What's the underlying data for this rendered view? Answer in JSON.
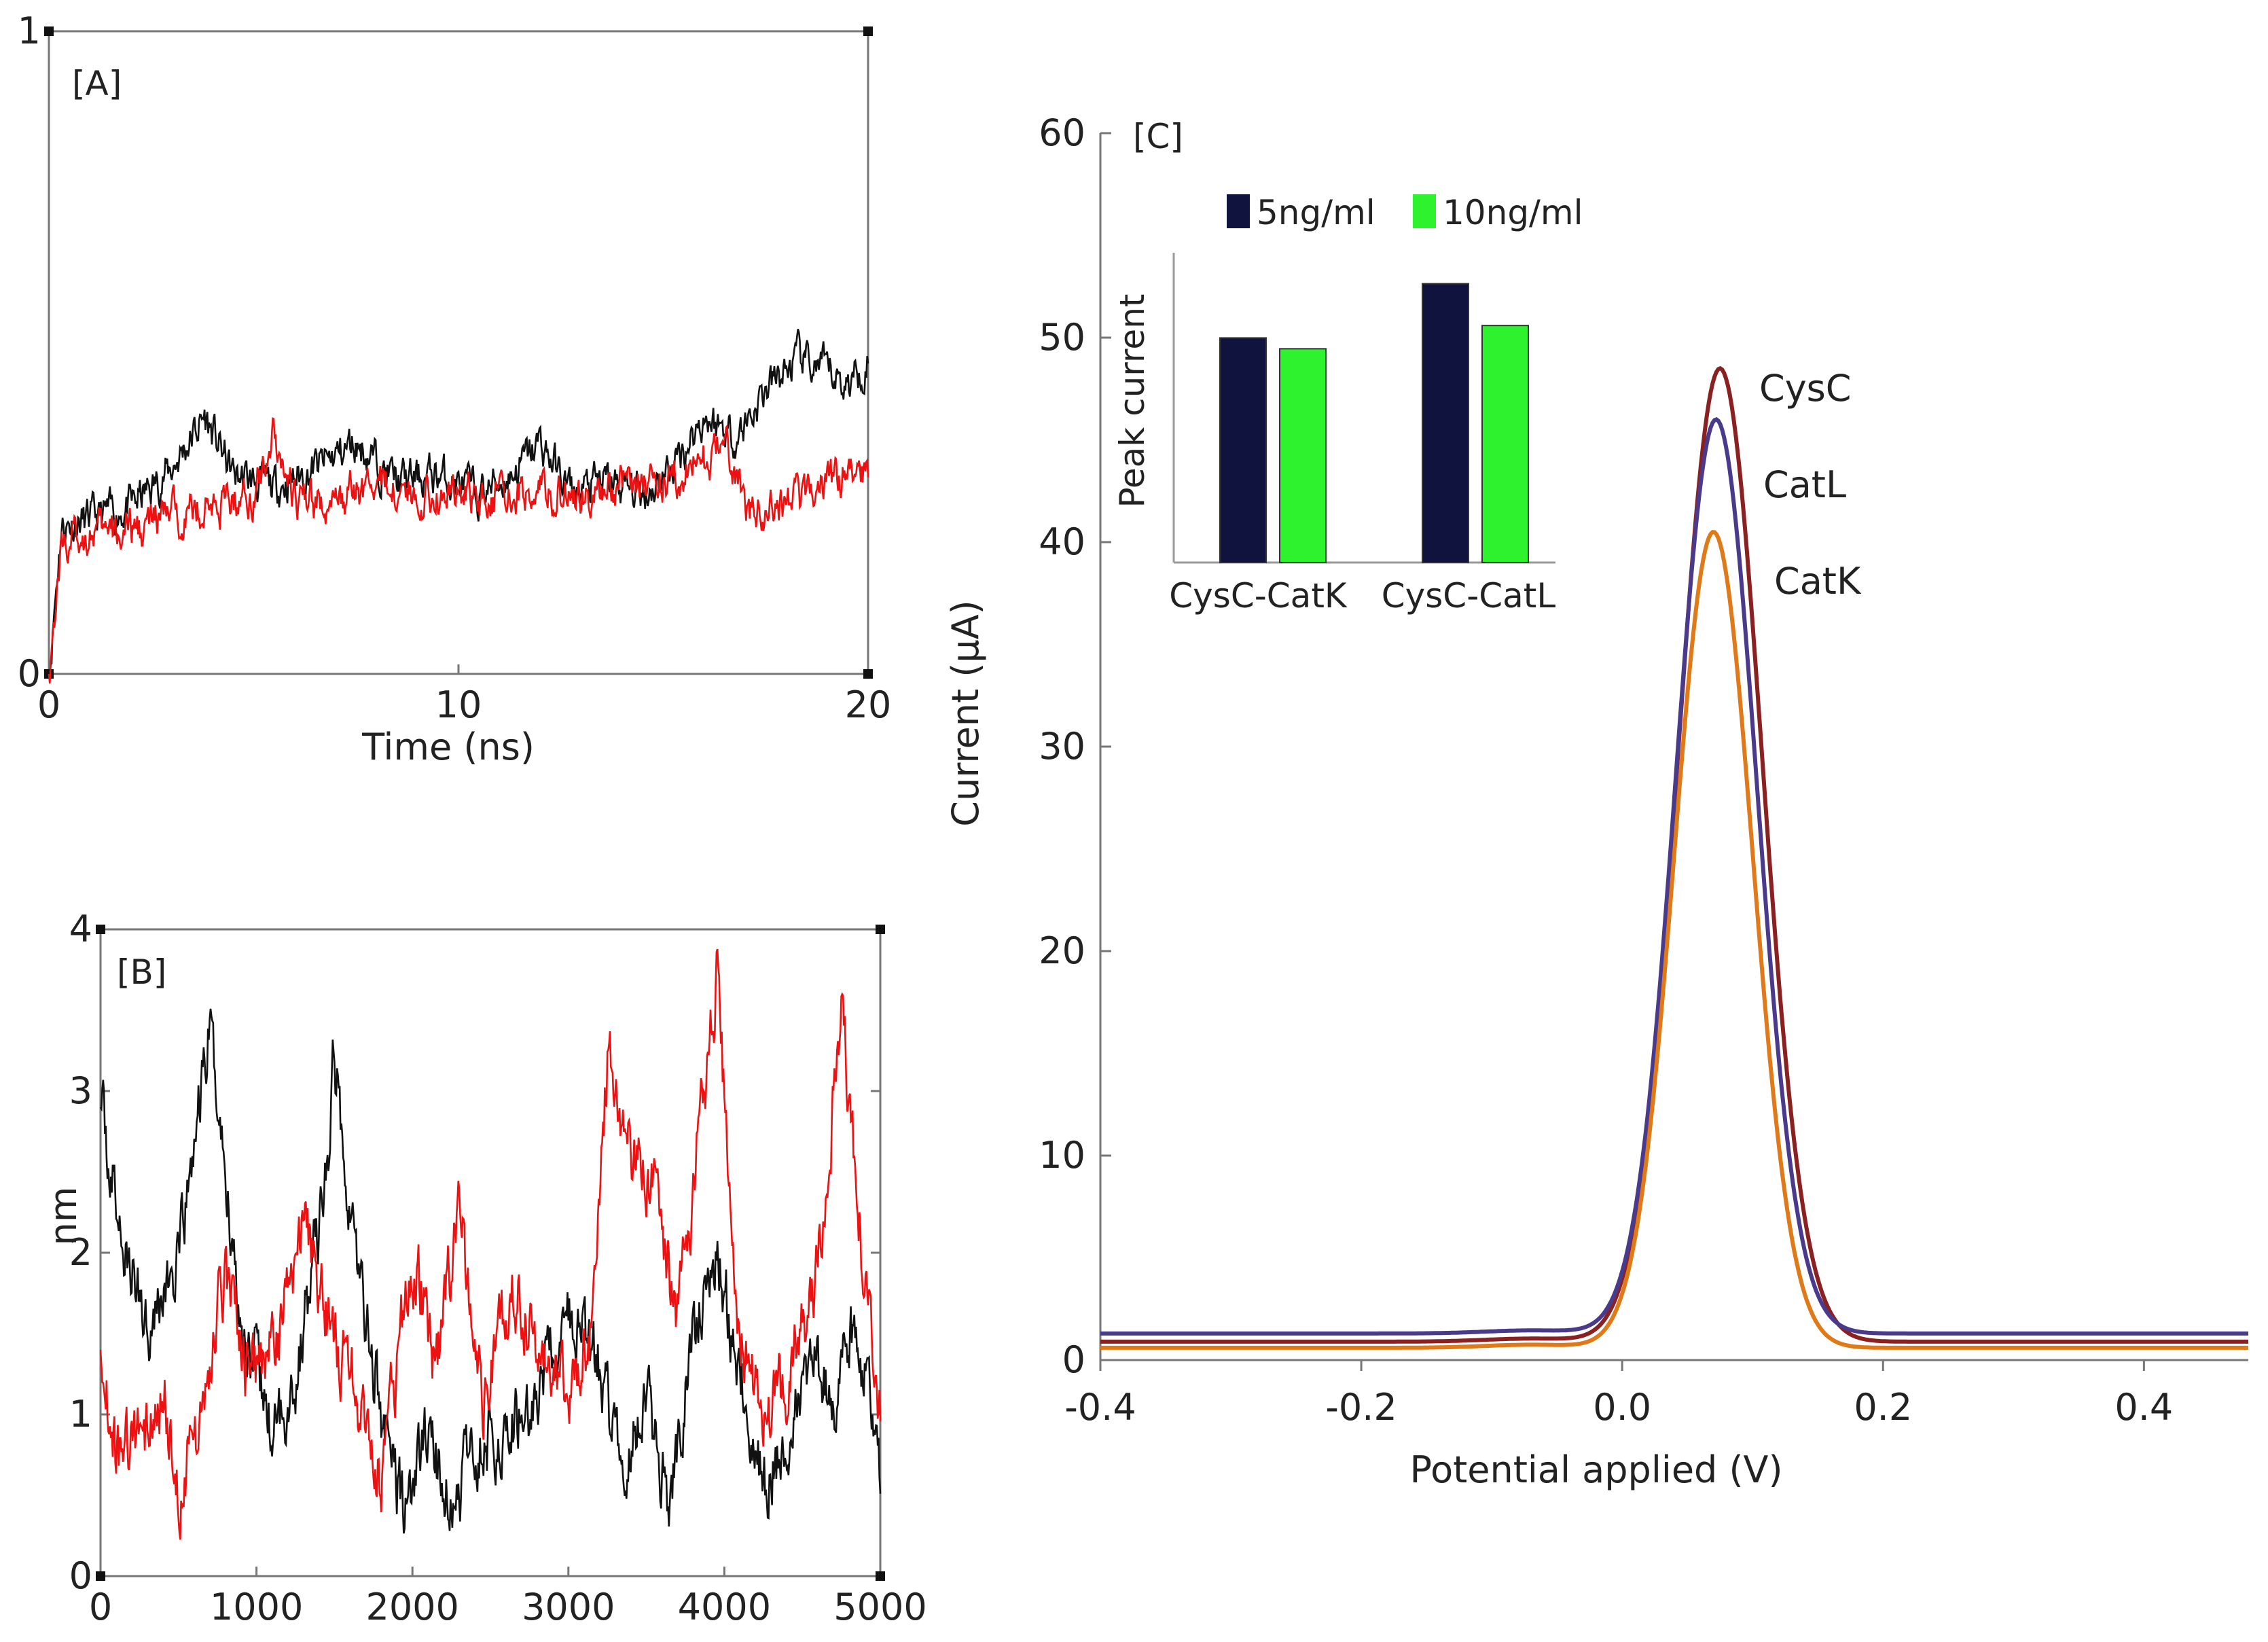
{
  "chart_data": [
    {
      "panel": "[A]",
      "type": "line",
      "xlabel": "Time (ns)",
      "ylabel": "",
      "xlim": [
        0,
        20
      ],
      "ylim": [
        0,
        1
      ],
      "x_ticks": [
        "0",
        "10",
        "20"
      ],
      "y_ticks": [
        "0",
        "1"
      ],
      "series": [
        {
          "name": "black",
          "color": "#111111",
          "points": [
            [
              0,
              0.0
            ],
            [
              0.3,
              0.23
            ],
            [
              1,
              0.24
            ],
            [
              2,
              0.26
            ],
            [
              3,
              0.32
            ],
            [
              3.8,
              0.4
            ],
            [
              4.5,
              0.31
            ],
            [
              5.5,
              0.29
            ],
            [
              6.5,
              0.32
            ],
            [
              7.5,
              0.36
            ],
            [
              8.5,
              0.3
            ],
            [
              9.5,
              0.31
            ],
            [
              10.5,
              0.28
            ],
            [
              11.3,
              0.31
            ],
            [
              12,
              0.36
            ],
            [
              12.8,
              0.28
            ],
            [
              13.5,
              0.3
            ],
            [
              14.5,
              0.28
            ],
            [
              15.2,
              0.32
            ],
            [
              16,
              0.4
            ],
            [
              16.8,
              0.37
            ],
            [
              17.5,
              0.44
            ],
            [
              18.3,
              0.49
            ],
            [
              19,
              0.47
            ],
            [
              19.5,
              0.45
            ],
            [
              20,
              0.49
            ]
          ]
        },
        {
          "name": "red",
          "color": "#ee1111",
          "points": [
            [
              0,
              0.0
            ],
            [
              0.3,
              0.2
            ],
            [
              1,
              0.22
            ],
            [
              2,
              0.22
            ],
            [
              3,
              0.25
            ],
            [
              4,
              0.26
            ],
            [
              5,
              0.28
            ],
            [
              5.5,
              0.38
            ],
            [
              6,
              0.27
            ],
            [
              7,
              0.26
            ],
            [
              8,
              0.3
            ],
            [
              9,
              0.28
            ],
            [
              10,
              0.28
            ],
            [
              11,
              0.27
            ],
            [
              12,
              0.29
            ],
            [
              13,
              0.27
            ],
            [
              14,
              0.3
            ],
            [
              15,
              0.3
            ],
            [
              16,
              0.33
            ],
            [
              16.5,
              0.36
            ],
            [
              17,
              0.26
            ],
            [
              17.5,
              0.25
            ],
            [
              18.5,
              0.28
            ],
            [
              19.5,
              0.32
            ],
            [
              20,
              0.32
            ]
          ]
        }
      ]
    },
    {
      "panel": "[B]",
      "type": "line",
      "xlabel": "",
      "ylabel": "nm",
      "xlim": [
        0,
        5000
      ],
      "ylim": [
        0,
        4
      ],
      "x_ticks": [
        "0",
        "1000",
        "2000",
        "3000",
        "4000",
        "5000"
      ],
      "y_ticks": [
        "0",
        "1",
        "2",
        "3",
        "4"
      ],
      "series": [
        {
          "name": "black",
          "color": "#111111",
          "points": [
            [
              0,
              2.9
            ],
            [
              150,
              2.0
            ],
            [
              300,
              1.6
            ],
            [
              500,
              1.9
            ],
            [
              700,
              3.4
            ],
            [
              900,
              1.6
            ],
            [
              1100,
              0.9
            ],
            [
              1250,
              1.2
            ],
            [
              1450,
              2.5
            ],
            [
              1500,
              3.2
            ],
            [
              1650,
              1.9
            ],
            [
              1800,
              1.0
            ],
            [
              1950,
              0.4
            ],
            [
              2100,
              0.9
            ],
            [
              2250,
              0.4
            ],
            [
              2400,
              0.8
            ],
            [
              2600,
              0.9
            ],
            [
              2800,
              1.1
            ],
            [
              3000,
              1.6
            ],
            [
              3200,
              1.3
            ],
            [
              3350,
              0.6
            ],
            [
              3500,
              1.1
            ],
            [
              3650,
              0.4
            ],
            [
              3800,
              1.5
            ],
            [
              3950,
              2.0
            ],
            [
              4100,
              1.3
            ],
            [
              4250,
              0.5
            ],
            [
              4400,
              0.9
            ],
            [
              4550,
              1.4
            ],
            [
              4700,
              1.0
            ],
            [
              4800,
              1.5
            ],
            [
              4900,
              1.3
            ],
            [
              5000,
              0.5
            ]
          ]
        },
        {
          "name": "red",
          "color": "#ee1111",
          "points": [
            [
              0,
              1.4
            ],
            [
              100,
              0.7
            ],
            [
              250,
              0.8
            ],
            [
              400,
              1.2
            ],
            [
              500,
              0.5
            ],
            [
              650,
              1.0
            ],
            [
              800,
              1.9
            ],
            [
              950,
              1.2
            ],
            [
              1150,
              1.5
            ],
            [
              1300,
              2.2
            ],
            [
              1450,
              1.6
            ],
            [
              1650,
              1.1
            ],
            [
              1800,
              0.6
            ],
            [
              2000,
              2.0
            ],
            [
              2150,
              1.3
            ],
            [
              2300,
              2.2
            ],
            [
              2450,
              1.1
            ],
            [
              2650,
              1.8
            ],
            [
              2800,
              1.4
            ],
            [
              3000,
              1.1
            ],
            [
              3150,
              1.5
            ],
            [
              3250,
              3.2
            ],
            [
              3400,
              2.6
            ],
            [
              3550,
              2.4
            ],
            [
              3700,
              1.6
            ],
            [
              3850,
              2.8
            ],
            [
              3950,
              3.7
            ],
            [
              4100,
              1.5
            ],
            [
              4250,
              1.0
            ],
            [
              4400,
              1.2
            ],
            [
              4600,
              1.9
            ],
            [
              4750,
              3.5
            ],
            [
              4900,
              1.8
            ],
            [
              5000,
              1.0
            ]
          ]
        }
      ]
    },
    {
      "panel": "[C]",
      "type": "line",
      "xlabel": "Potential applied (V)",
      "ylabel": "Current (μA)",
      "xlim": [
        -0.4,
        0.48
      ],
      "ylim": [
        0,
        60
      ],
      "x_ticks": [
        "-0.4",
        "-0.2",
        "0.0",
        "0.2",
        "0.4"
      ],
      "y_ticks": [
        "0",
        "10",
        "20",
        "30",
        "40",
        "50",
        "60"
      ],
      "series": [
        {
          "name": "CysC",
          "color": "#8b2020",
          "baseline": 0.9,
          "peak": 48.5,
          "center": 0.075,
          "sigma": 0.032
        },
        {
          "name": "CatL",
          "color": "#4a3a8c",
          "baseline": 1.3,
          "peak": 46.0,
          "center": 0.072,
          "sigma": 0.031
        },
        {
          "name": "CatK",
          "color": "#e07a18",
          "baseline": 0.6,
          "peak": 40.5,
          "center": 0.07,
          "sigma": 0.03
        }
      ],
      "curve_labels": [
        "CysC",
        "CatL",
        "CatK"
      ]
    },
    {
      "panel": "[C] inset",
      "type": "bar",
      "ylabel": "Peak current",
      "categories": [
        "CysC-CatK",
        "CysC-CatL"
      ],
      "series": [
        {
          "name": "5ng/ml",
          "color": "#11133f",
          "values": [
            50.5,
            54.0
          ]
        },
        {
          "name": "10ng/ml",
          "color": "#2ef22e",
          "values": [
            49.8,
            51.3
          ]
        }
      ],
      "ylim": [
        36,
        56
      ]
    }
  ]
}
